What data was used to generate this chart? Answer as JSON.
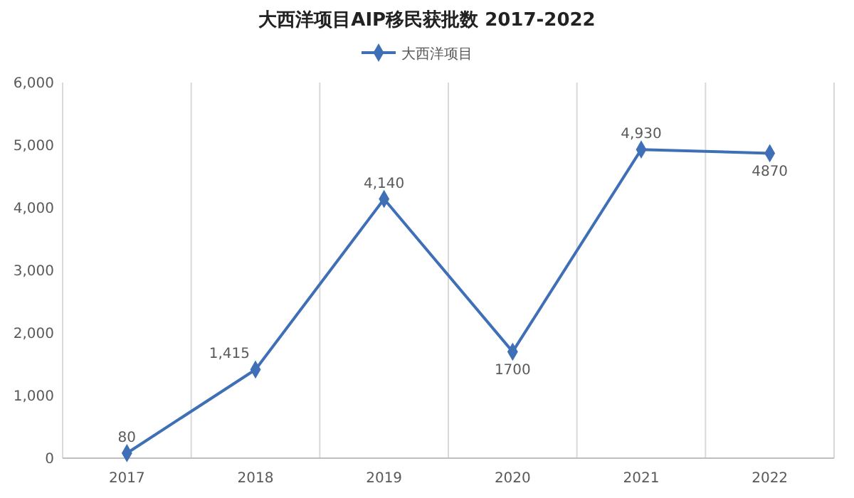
{
  "chart_data": {
    "type": "line",
    "title": "大西洋项目AIP移民获批数 2017-2022",
    "categories": [
      "2017",
      "2018",
      "2019",
      "2020",
      "2021",
      "2022"
    ],
    "series": [
      {
        "name": "大西洋项目",
        "color": "#3f6fb6",
        "values": [
          80,
          1415,
          4140,
          1700,
          4930,
          4870
        ],
        "value_labels": [
          "80",
          "1,415",
          "4,140",
          "1700",
          "4,930",
          "4870"
        ]
      }
    ],
    "ylim": [
      0,
      6000
    ],
    "yticks": [
      {
        "value": 0,
        "label": "0"
      },
      {
        "value": 1000,
        "label": "1,000"
      },
      {
        "value": 2000,
        "label": "2,000"
      },
      {
        "value": 3000,
        "label": "3,000"
      },
      {
        "value": 4000,
        "label": "4,000"
      },
      {
        "value": 5000,
        "label": "5,000"
      },
      {
        "value": 6000,
        "label": "6,000"
      }
    ],
    "grid": "x",
    "legend": "top",
    "marker": "diamond",
    "line_style": "solid"
  }
}
